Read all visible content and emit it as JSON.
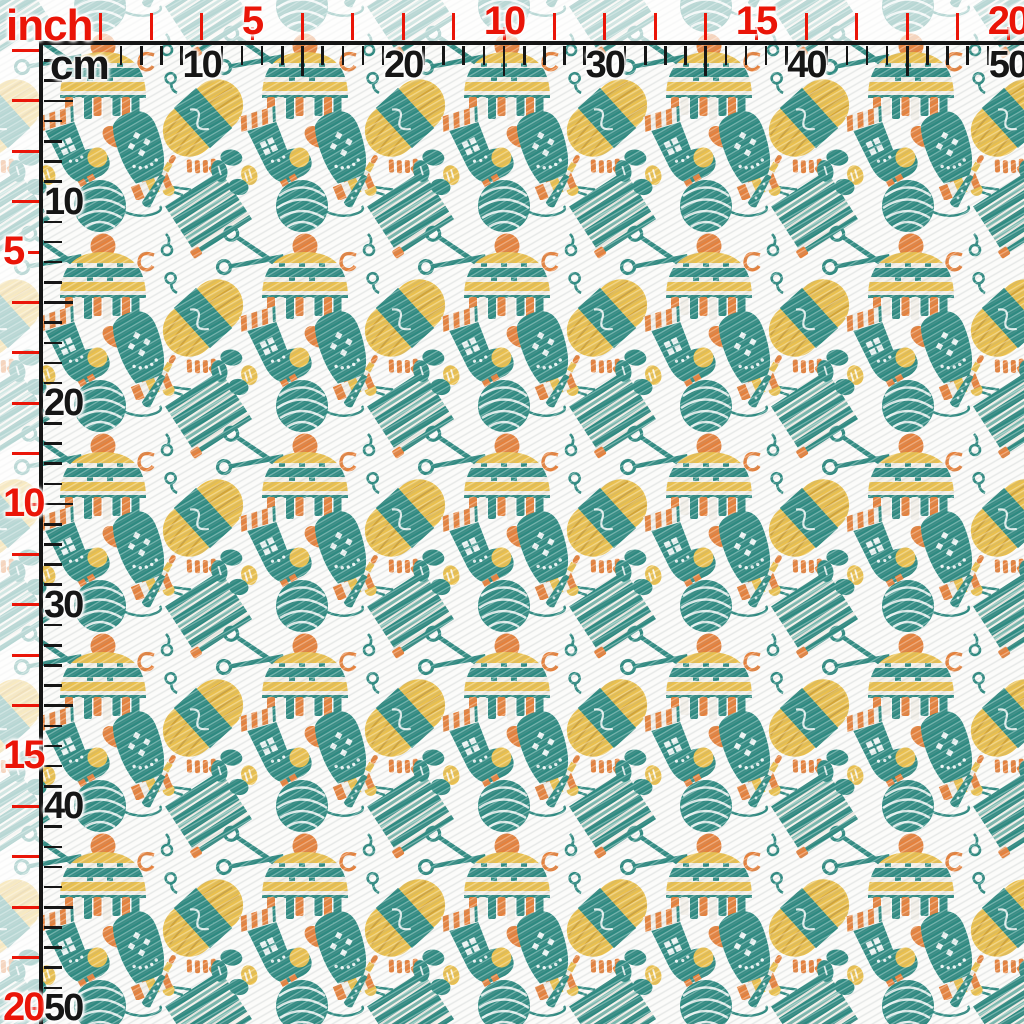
{
  "rulers": {
    "top": {
      "inch_unit_label": "inch",
      "inch_labels": [
        {
          "text": "5",
          "units": 5
        },
        {
          "text": "10",
          "units": 10
        },
        {
          "text": "15",
          "units": 15
        },
        {
          "text": "20",
          "units": 20
        }
      ],
      "cm_unit_label": "cm",
      "cm_labels": [
        {
          "text": "10",
          "units": 10
        },
        {
          "text": "20",
          "units": 20
        },
        {
          "text": "30",
          "units": 30
        },
        {
          "text": "40",
          "units": 40
        },
        {
          "text": "50",
          "units": 50
        }
      ]
    },
    "left": {
      "inch_labels": [
        {
          "text": "5",
          "units": 5
        },
        {
          "text": "10",
          "units": 10
        },
        {
          "text": "15",
          "units": 15
        },
        {
          "text": "20",
          "units": 20
        }
      ],
      "cm_labels": [
        {
          "text": "10",
          "units": 10
        },
        {
          "text": "20",
          "units": 20
        },
        {
          "text": "30",
          "units": 30
        },
        {
          "text": "40",
          "units": 40
        },
        {
          "text": "50",
          "units": 50
        }
      ]
    },
    "colors": {
      "inch_red": "#EA1508",
      "cm_black": "#161616"
    }
  },
  "fabric": {
    "base_color": "#fbfbf9",
    "palette": {
      "teal": "#2E8A81",
      "teal_light": "#7AB8AE",
      "yellow": "#EAC04E",
      "yellow_dark": "#D2A438",
      "orange": "#E5813C",
      "cream": "#F2EFE8"
    },
    "motifs": [
      "winter-hat-with-pompom",
      "yarn-skein",
      "yarn-ball",
      "mitten",
      "sock",
      "knitting-on-needles",
      "scissors",
      "crochet-hook",
      "butterfly",
      "yarn-loop",
      "yarn-spiral"
    ]
  }
}
